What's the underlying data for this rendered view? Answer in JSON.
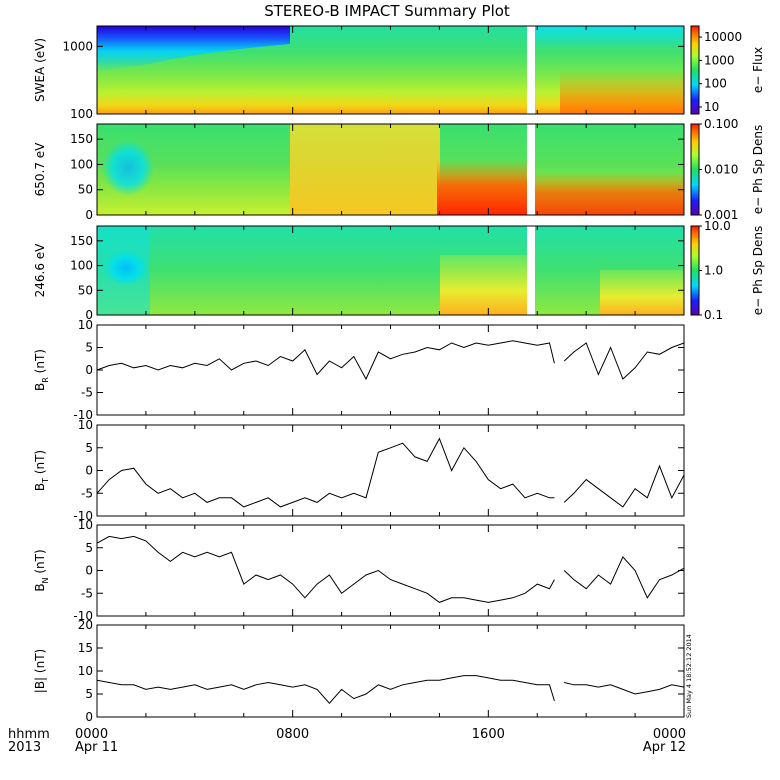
{
  "title": "STEREO-B IMPACT Summary Plot",
  "stamp": "Sun May  4 18:52:12 2014",
  "time_axis": {
    "row1_label": "hhmm",
    "row2_label": "2013",
    "ticks": [
      {
        "hours": 0,
        "label": "0000",
        "sub": "Apr 11"
      },
      {
        "hours": 8,
        "label": "0800",
        "sub": ""
      },
      {
        "hours": 16,
        "label": "1600",
        "sub": ""
      },
      {
        "hours": 24,
        "label": "0000",
        "sub": "Apr 12"
      }
    ]
  },
  "colors": {
    "line": "#000000",
    "gap": "#ffffff",
    "frame": "#000000"
  },
  "chart_data": [
    {
      "type": "heatmap",
      "id": "swea",
      "ylabel": "SWEA (eV)",
      "yscale": "log",
      "ylim": [
        100,
        2000
      ],
      "ytick_labels": [
        "1000",
        "100"
      ],
      "yticks": [
        1000,
        100
      ],
      "colorbar": {
        "label": "e− Flux",
        "scale": "log",
        "range": [
          5,
          30000
        ],
        "tick_values": [
          10000,
          1000,
          100,
          10
        ],
        "tick_labels": [
          "10000",
          "1000",
          "100",
          "10"
        ]
      },
      "data_gap_hours": [
        18.75,
        19.0
      ]
    },
    {
      "type": "heatmap",
      "id": "pad650",
      "ylabel": "650.7 eV",
      "ylim": [
        0,
        180
      ],
      "yticks": [
        0,
        50,
        100,
        150
      ],
      "ytick_labels": [
        "0",
        "50",
        "100",
        "150"
      ],
      "colorbar": {
        "label": "e− Ph Sp Dens",
        "scale": "log",
        "range": [
          0.001,
          0.1
        ],
        "tick_values": [
          0.1,
          0.01,
          0.001
        ],
        "tick_labels": [
          "0.100",
          "0.010",
          "0.001"
        ]
      },
      "data_gap_hours": [
        18.75,
        19.0
      ]
    },
    {
      "type": "heatmap",
      "id": "pad246",
      "ylabel": "246.6 eV",
      "ylim": [
        0,
        180
      ],
      "yticks": [
        0,
        50,
        100,
        150
      ],
      "ytick_labels": [
        "0",
        "50",
        "100",
        "150"
      ],
      "colorbar": {
        "label": "e− Ph Sp Dens",
        "scale": "log",
        "range": [
          0.1,
          10
        ],
        "tick_values": [
          10,
          1,
          0.1
        ],
        "tick_labels": [
          "10.0",
          "1.0",
          "0.1"
        ]
      },
      "data_gap_hours": [
        18.75,
        19.0
      ]
    },
    {
      "type": "line",
      "id": "br",
      "ylabel_main": "B",
      "ylabel_sub": "R",
      "ylabel_unit": " (nT)",
      "ylim": [
        -10,
        10
      ],
      "yticks": [
        10,
        5,
        0,
        -5,
        -10
      ],
      "ytick_labels": [
        "10",
        "5",
        "0",
        "-5",
        "-10"
      ],
      "x": [
        0,
        0.5,
        1,
        1.5,
        2,
        2.5,
        3,
        3.5,
        4,
        4.5,
        5,
        5.5,
        6,
        6.5,
        7,
        7.5,
        8,
        8.5,
        9,
        9.5,
        10,
        10.5,
        11,
        11.5,
        12,
        12.5,
        13,
        13.5,
        14,
        14.5,
        15,
        15.5,
        16,
        16.5,
        17,
        17.5,
        18,
        18.5,
        18.7,
        null,
        19.1,
        19.5,
        20,
        20.5,
        21,
        21.5,
        22,
        22.5,
        23,
        23.5,
        24
      ],
      "y": [
        0,
        1,
        1.5,
        0.5,
        1,
        0,
        1,
        0.5,
        1.5,
        1,
        2.5,
        0,
        1.5,
        2,
        1,
        3,
        2,
        4.5,
        -1,
        2,
        0.5,
        3,
        -2,
        4,
        2.5,
        3.5,
        4,
        5,
        4.5,
        6,
        5,
        6,
        5.5,
        6,
        6.5,
        6,
        5.5,
        6,
        1.5,
        null,
        2,
        4,
        6,
        -1,
        5,
        -2,
        0.5,
        4,
        3.5,
        5,
        6
      ]
    },
    {
      "type": "line",
      "id": "bt",
      "ylabel_main": "B",
      "ylabel_sub": "T",
      "ylabel_unit": " (nT)",
      "ylim": [
        -10,
        10
      ],
      "yticks": [
        10,
        5,
        0,
        -5,
        -10
      ],
      "ytick_labels": [
        "10",
        "5",
        "0",
        "-5",
        "-10"
      ],
      "x": [
        0,
        0.5,
        1,
        1.5,
        2,
        2.5,
        3,
        3.5,
        4,
        4.5,
        5,
        5.5,
        6,
        6.5,
        7,
        7.5,
        8,
        8.5,
        9,
        9.5,
        10,
        10.5,
        11,
        11.5,
        12,
        12.5,
        13,
        13.5,
        14,
        14.5,
        15,
        15.5,
        16,
        16.5,
        17,
        17.5,
        18,
        18.5,
        18.7,
        null,
        19.1,
        19.5,
        20,
        20.5,
        21,
        21.5,
        22,
        22.5,
        23,
        23.5,
        24
      ],
      "y": [
        -5,
        -2,
        0,
        0.5,
        -3,
        -5,
        -4,
        -6,
        -5,
        -7,
        -6,
        -6,
        -8,
        -7,
        -6,
        -8,
        -7,
        -6,
        -7,
        -5,
        -6,
        -5,
        -6,
        4,
        5,
        6,
        3,
        2,
        7,
        0,
        5,
        2,
        -2,
        -4,
        -3,
        -6,
        -5,
        -6,
        -6,
        null,
        -7,
        -5,
        -2,
        -4,
        -6,
        -8,
        -4,
        -6,
        1,
        -6,
        -1
      ]
    },
    {
      "type": "line",
      "id": "bn",
      "ylabel_main": "B",
      "ylabel_sub": "N",
      "ylabel_unit": " (nT)",
      "ylim": [
        -10,
        10
      ],
      "yticks": [
        10,
        5,
        0,
        -5,
        -10
      ],
      "ytick_labels": [
        "10",
        "5",
        "0",
        "-5",
        "-10"
      ],
      "x": [
        0,
        0.5,
        1,
        1.5,
        2,
        2.5,
        3,
        3.5,
        4,
        4.5,
        5,
        5.5,
        6,
        6.5,
        7,
        7.5,
        8,
        8.5,
        9,
        9.5,
        10,
        10.5,
        11,
        11.5,
        12,
        12.5,
        13,
        13.5,
        14,
        14.5,
        15,
        15.5,
        16,
        16.5,
        17,
        17.5,
        18,
        18.5,
        18.7,
        null,
        19.1,
        19.5,
        20,
        20.5,
        21,
        21.5,
        22,
        22.5,
        23,
        23.5,
        24
      ],
      "y": [
        6,
        7.5,
        7,
        7.5,
        6.5,
        4,
        2,
        4,
        3,
        4,
        3,
        4,
        -3,
        -1,
        -2,
        -1,
        -3,
        -6,
        -3,
        -1,
        -5,
        -3,
        -1,
        0,
        -2,
        -3,
        -4,
        -5,
        -7,
        -6,
        -6,
        -6.5,
        -7,
        -6.5,
        -6,
        -5,
        -3,
        -4,
        -2,
        null,
        0,
        -2,
        -4,
        -1,
        -3,
        3,
        0,
        -6,
        -2,
        -1,
        0.5
      ]
    },
    {
      "type": "line",
      "id": "bmag",
      "ylabel_main": "|B| (nT)",
      "ylabel_sub": "",
      "ylabel_unit": "",
      "ylim": [
        0,
        20
      ],
      "yticks": [
        20,
        15,
        10,
        5,
        0
      ],
      "ytick_labels": [
        "20",
        "15",
        "10",
        "5",
        "0"
      ],
      "x": [
        0,
        0.5,
        1,
        1.5,
        2,
        2.5,
        3,
        3.5,
        4,
        4.5,
        5,
        5.5,
        6,
        6.5,
        7,
        7.5,
        8,
        8.5,
        9,
        9.5,
        10,
        10.5,
        11,
        11.5,
        12,
        12.5,
        13,
        13.5,
        14,
        14.5,
        15,
        15.5,
        16,
        16.5,
        17,
        17.5,
        18,
        18.5,
        18.7,
        null,
        19.1,
        19.5,
        20,
        20.5,
        21,
        21.5,
        22,
        22.5,
        23,
        23.5,
        24
      ],
      "y": [
        8,
        7.5,
        7,
        7,
        6,
        6.5,
        6,
        6.5,
        7,
        6,
        6.5,
        7,
        6,
        7,
        7.5,
        7,
        6.5,
        7,
        6,
        3,
        6,
        4,
        5,
        7,
        6,
        7,
        7.5,
        8,
        8,
        8.5,
        9,
        9,
        8.5,
        8,
        8,
        7.5,
        7,
        7,
        3.5,
        null,
        7.5,
        7,
        7,
        6.5,
        7,
        6,
        5,
        5.5,
        6,
        7,
        6.5
      ]
    }
  ]
}
